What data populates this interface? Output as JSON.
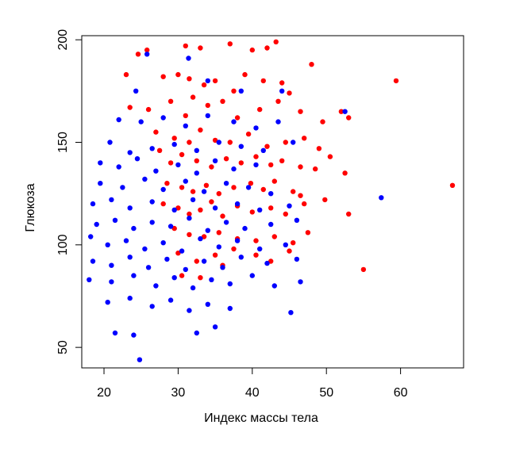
{
  "chart_data": {
    "type": "scatter",
    "title": "",
    "xlabel": "Индекс массы тела",
    "ylabel": "Глюкоза",
    "xlim": [
      17,
      68.5
    ],
    "ylim": [
      40,
      202
    ],
    "xticks": [
      20,
      30,
      40,
      50,
      60
    ],
    "yticks": [
      50,
      100,
      150,
      200
    ],
    "grid": false,
    "legend": "none",
    "series": [
      {
        "color": "#ff0000",
        "points": [
          [
            24.6,
            193
          ],
          [
            25.8,
            195
          ],
          [
            31.0,
            197
          ],
          [
            33.0,
            196
          ],
          [
            37.0,
            198
          ],
          [
            40.0,
            195
          ],
          [
            42.0,
            196
          ],
          [
            43.2,
            199
          ],
          [
            23.0,
            183
          ],
          [
            28.0,
            182
          ],
          [
            30.0,
            183
          ],
          [
            31.5,
            181
          ],
          [
            33.5,
            178
          ],
          [
            35.0,
            180
          ],
          [
            37.5,
            175
          ],
          [
            39.0,
            183
          ],
          [
            41.5,
            180
          ],
          [
            44.0,
            179
          ],
          [
            48.0,
            188
          ],
          [
            59.4,
            180
          ],
          [
            23.5,
            167
          ],
          [
            26.0,
            166
          ],
          [
            29.0,
            170
          ],
          [
            31.0,
            163
          ],
          [
            32.0,
            172
          ],
          [
            34.0,
            168
          ],
          [
            36.0,
            170
          ],
          [
            38.0,
            162
          ],
          [
            41.0,
            166
          ],
          [
            43.5,
            170
          ],
          [
            45.0,
            174
          ],
          [
            46.5,
            165
          ],
          [
            49.5,
            160
          ],
          [
            52.0,
            165
          ],
          [
            53.0,
            162
          ],
          [
            27.0,
            155
          ],
          [
            29.5,
            152
          ],
          [
            31.5,
            150
          ],
          [
            33.0,
            156
          ],
          [
            35.0,
            151
          ],
          [
            37.0,
            150
          ],
          [
            39.5,
            154
          ],
          [
            42.0,
            148
          ],
          [
            44.5,
            150
          ],
          [
            47.0,
            152
          ],
          [
            49.0,
            147
          ],
          [
            50.5,
            143
          ],
          [
            27.5,
            146
          ],
          [
            29.0,
            140
          ],
          [
            30.5,
            144
          ],
          [
            32.5,
            141
          ],
          [
            34.5,
            138
          ],
          [
            36.5,
            142
          ],
          [
            38.5,
            140
          ],
          [
            40.5,
            143
          ],
          [
            42.5,
            139
          ],
          [
            44.0,
            141
          ],
          [
            46.5,
            138
          ],
          [
            48.5,
            137
          ],
          [
            28.5,
            130
          ],
          [
            30.5,
            128
          ],
          [
            32.0,
            126
          ],
          [
            33.8,
            129
          ],
          [
            35.5,
            125
          ],
          [
            37.5,
            128
          ],
          [
            39.8,
            130
          ],
          [
            41.5,
            127
          ],
          [
            43.0,
            131
          ],
          [
            45.5,
            126
          ],
          [
            46.5,
            124
          ],
          [
            52.5,
            135
          ],
          [
            67.0,
            129
          ],
          [
            28.0,
            120
          ],
          [
            30.0,
            118
          ],
          [
            31.5,
            115
          ],
          [
            33.0,
            117
          ],
          [
            34.5,
            121
          ],
          [
            36.0,
            114
          ],
          [
            38.0,
            119
          ],
          [
            40.0,
            116
          ],
          [
            42.5,
            118
          ],
          [
            44.5,
            115
          ],
          [
            47.0,
            120
          ],
          [
            49.8,
            122
          ],
          [
            53.0,
            115
          ],
          [
            29.5,
            108
          ],
          [
            31.5,
            105
          ],
          [
            33.5,
            104
          ],
          [
            35.5,
            106
          ],
          [
            38.0,
            103
          ],
          [
            40.5,
            102
          ],
          [
            43.0,
            104
          ],
          [
            45.5,
            101
          ],
          [
            47.5,
            106
          ],
          [
            30.0,
            96
          ],
          [
            32.5,
            92
          ],
          [
            35.0,
            95
          ],
          [
            37.5,
            98
          ],
          [
            40.5,
            95
          ],
          [
            42.5,
            92
          ],
          [
            45.0,
            97
          ],
          [
            30.5,
            85
          ],
          [
            33.0,
            84
          ],
          [
            55.0,
            88
          ],
          [
            36.0,
            90
          ]
        ]
      },
      {
        "color": "#0000ff",
        "points": [
          [
            25.8,
            193
          ],
          [
            31.4,
            191
          ],
          [
            34.0,
            180
          ],
          [
            38.5,
            175
          ],
          [
            24.3,
            175
          ],
          [
            44.0,
            175
          ],
          [
            22.0,
            161
          ],
          [
            25.0,
            160
          ],
          [
            28.0,
            162
          ],
          [
            31.0,
            158
          ],
          [
            34.0,
            163
          ],
          [
            37.5,
            160
          ],
          [
            40.5,
            157
          ],
          [
            43.5,
            160
          ],
          [
            52.5,
            165
          ],
          [
            20.8,
            150
          ],
          [
            23.5,
            145
          ],
          [
            26.5,
            147
          ],
          [
            29.5,
            149
          ],
          [
            32.5,
            146
          ],
          [
            35.5,
            150
          ],
          [
            38.5,
            148
          ],
          [
            41.5,
            146
          ],
          [
            45.5,
            150
          ],
          [
            19.5,
            140
          ],
          [
            22.0,
            138
          ],
          [
            24.5,
            142
          ],
          [
            27.0,
            136
          ],
          [
            30.0,
            139
          ],
          [
            32.5,
            135
          ],
          [
            35.0,
            141
          ],
          [
            37.5,
            137
          ],
          [
            40.5,
            139
          ],
          [
            19.5,
            130
          ],
          [
            22.5,
            128
          ],
          [
            25.5,
            132
          ],
          [
            28.0,
            127
          ],
          [
            31.0,
            131
          ],
          [
            33.5,
            126
          ],
          [
            36.5,
            130
          ],
          [
            39.5,
            128
          ],
          [
            42.5,
            125
          ],
          [
            57.4,
            123
          ],
          [
            18.5,
            120
          ],
          [
            21.0,
            122
          ],
          [
            23.5,
            118
          ],
          [
            26.5,
            121
          ],
          [
            29.5,
            117
          ],
          [
            32.0,
            122
          ],
          [
            35.0,
            118
          ],
          [
            38.0,
            120
          ],
          [
            41.0,
            117
          ],
          [
            45.0,
            119
          ],
          [
            19.0,
            110
          ],
          [
            21.5,
            112
          ],
          [
            24.0,
            108
          ],
          [
            26.5,
            111
          ],
          [
            29.0,
            109
          ],
          [
            31.5,
            113
          ],
          [
            34.0,
            107
          ],
          [
            36.5,
            111
          ],
          [
            39.0,
            108
          ],
          [
            42.5,
            110
          ],
          [
            46.0,
            112
          ],
          [
            18.2,
            104
          ],
          [
            20.5,
            100
          ],
          [
            23.0,
            102
          ],
          [
            25.5,
            98
          ],
          [
            28.0,
            101
          ],
          [
            30.5,
            97
          ],
          [
            33.0,
            103
          ],
          [
            35.5,
            99
          ],
          [
            38.0,
            102
          ],
          [
            41.0,
            98
          ],
          [
            44.5,
            100
          ],
          [
            18.5,
            92
          ],
          [
            21.0,
            90
          ],
          [
            23.5,
            94
          ],
          [
            26.0,
            89
          ],
          [
            28.5,
            93
          ],
          [
            31.0,
            88
          ],
          [
            33.5,
            92
          ],
          [
            36.0,
            89
          ],
          [
            38.5,
            94
          ],
          [
            42.0,
            91
          ],
          [
            46.0,
            93
          ],
          [
            18.0,
            83
          ],
          [
            21.0,
            82
          ],
          [
            24.0,
            85
          ],
          [
            27.0,
            80
          ],
          [
            29.5,
            84
          ],
          [
            32.0,
            79
          ],
          [
            34.5,
            83
          ],
          [
            37.0,
            81
          ],
          [
            40.0,
            85
          ],
          [
            43.0,
            80
          ],
          [
            46.5,
            82
          ],
          [
            20.5,
            72
          ],
          [
            23.5,
            74
          ],
          [
            26.5,
            70
          ],
          [
            29.0,
            73
          ],
          [
            31.5,
            68
          ],
          [
            34.0,
            71
          ],
          [
            37.0,
            69
          ],
          [
            21.5,
            57
          ],
          [
            24.0,
            56
          ],
          [
            32.5,
            57
          ],
          [
            35.0,
            60
          ],
          [
            45.2,
            67
          ],
          [
            24.8,
            44
          ]
        ]
      }
    ]
  }
}
